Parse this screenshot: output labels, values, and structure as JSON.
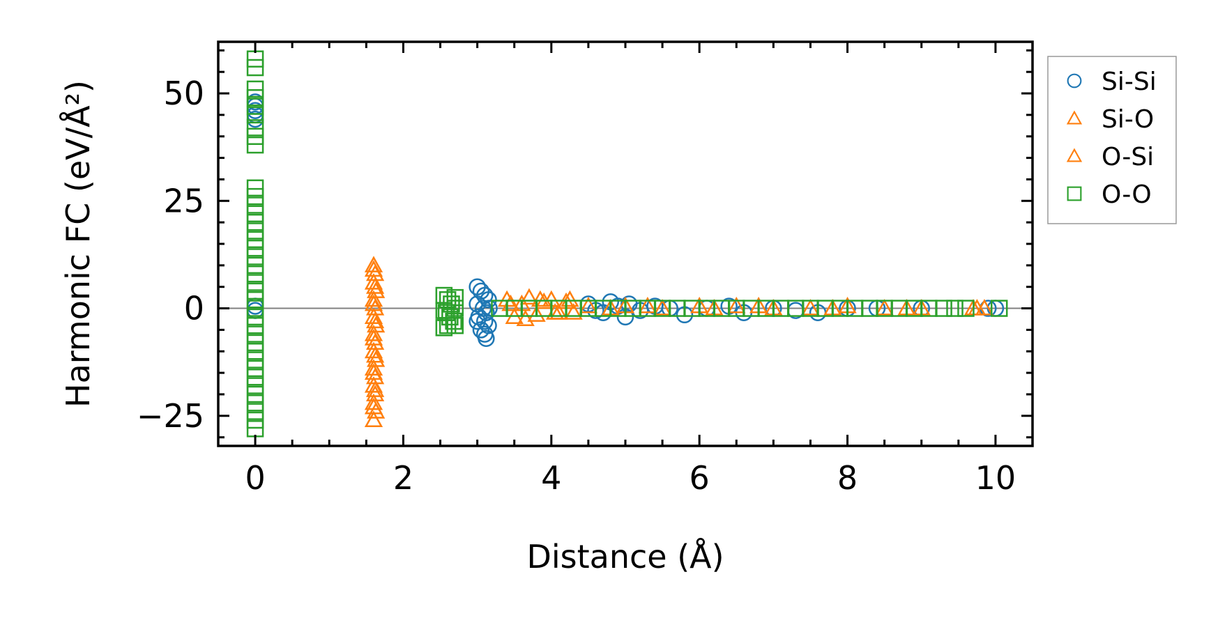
{
  "chart_data": {
    "type": "scatter",
    "title": "",
    "xlabel": "Distance (Å)",
    "ylabel": "Harmonic FC (eV/Å²)",
    "xlim": [
      -0.5,
      10.5
    ],
    "ylim": [
      -32,
      62
    ],
    "xticks": [
      0,
      2,
      4,
      6,
      8,
      10
    ],
    "xtick_labels": [
      "0",
      "2",
      "4",
      "6",
      "8",
      "10"
    ],
    "yticks": [
      -25,
      0,
      25,
      50
    ],
    "ytick_labels": [
      "−25",
      "0",
      "25",
      "50"
    ],
    "grid": false,
    "zero_line": {
      "y": 0,
      "color": "#808080"
    },
    "legend": {
      "placement": "outside-right-top"
    },
    "series": [
      {
        "name": "Si-Si",
        "marker": "circle",
        "color": "#1f77b4",
        "points": [
          [
            0,
            48
          ],
          [
            0,
            47
          ],
          [
            0,
            46
          ],
          [
            0,
            45
          ],
          [
            0,
            44
          ],
          [
            0,
            0.5
          ],
          [
            0,
            -0.5
          ],
          [
            3.0,
            5
          ],
          [
            3.05,
            4
          ],
          [
            3.1,
            3
          ],
          [
            3.15,
            2
          ],
          [
            3.0,
            1
          ],
          [
            3.08,
            0
          ],
          [
            3.12,
            -1
          ],
          [
            3.02,
            -2
          ],
          [
            3.1,
            -3
          ],
          [
            3.15,
            -4
          ],
          [
            3.05,
            -5
          ],
          [
            3.1,
            -6
          ],
          [
            3.12,
            -7
          ],
          [
            3.0,
            -3
          ],
          [
            3.16,
            0
          ],
          [
            4.5,
            1
          ],
          [
            4.6,
            -0.5
          ],
          [
            4.7,
            -1
          ],
          [
            4.8,
            1.5
          ],
          [
            4.9,
            0.5
          ],
          [
            5.0,
            -2
          ],
          [
            5.05,
            1
          ],
          [
            5.2,
            -0.5
          ],
          [
            5.4,
            0.5
          ],
          [
            5.6,
            0
          ],
          [
            5.8,
            -1.5
          ],
          [
            6.1,
            0
          ],
          [
            6.4,
            0.5
          ],
          [
            6.6,
            -1
          ],
          [
            7.0,
            0
          ],
          [
            7.3,
            -0.5
          ],
          [
            7.6,
            -1
          ],
          [
            8.0,
            0
          ],
          [
            8.4,
            0
          ],
          [
            9.0,
            0
          ],
          [
            9.9,
            0
          ],
          [
            10.0,
            0
          ]
        ]
      },
      {
        "name": "Si-O",
        "marker": "triangle",
        "color": "#ff7f0e",
        "points": [
          [
            1.6,
            10
          ],
          [
            1.62,
            8
          ],
          [
            1.6,
            6
          ],
          [
            1.63,
            4
          ],
          [
            1.6,
            2
          ],
          [
            1.62,
            0
          ],
          [
            1.6,
            -2
          ],
          [
            1.63,
            -4
          ],
          [
            1.6,
            -6
          ],
          [
            1.62,
            -8
          ],
          [
            1.6,
            -10
          ],
          [
            1.63,
            -12
          ],
          [
            1.6,
            -14
          ],
          [
            1.62,
            -16
          ],
          [
            1.6,
            -18
          ],
          [
            1.62,
            -20
          ],
          [
            1.6,
            -22
          ],
          [
            1.63,
            -24
          ],
          [
            1.6,
            -26
          ],
          [
            3.4,
            2
          ],
          [
            3.5,
            -2
          ],
          [
            3.6,
            1
          ],
          [
            3.7,
            2.5
          ],
          [
            3.8,
            -1.5
          ],
          [
            3.9,
            1.5
          ],
          [
            4.0,
            2
          ],
          [
            4.1,
            -1
          ],
          [
            4.2,
            1.5
          ],
          [
            4.3,
            -1
          ],
          [
            4.5,
            0.5
          ],
          [
            5.0,
            0.5
          ],
          [
            5.5,
            0
          ],
          [
            6.0,
            0.5
          ],
          [
            6.5,
            0.5
          ],
          [
            7.0,
            0
          ],
          [
            7.5,
            0
          ],
          [
            8.0,
            0.5
          ],
          [
            8.5,
            0
          ],
          [
            9.0,
            0
          ],
          [
            9.7,
            0
          ],
          [
            9.85,
            0
          ]
        ]
      },
      {
        "name": "O-Si",
        "marker": "triangle",
        "color": "#ff7f0e",
        "points": [
          [
            1.6,
            9
          ],
          [
            1.62,
            5
          ],
          [
            1.6,
            1
          ],
          [
            1.62,
            -3
          ],
          [
            1.6,
            -7
          ],
          [
            1.62,
            -11
          ],
          [
            1.6,
            -15
          ],
          [
            1.62,
            -19
          ],
          [
            1.6,
            -23
          ],
          [
            3.45,
            1
          ],
          [
            3.65,
            -2.5
          ],
          [
            3.85,
            2
          ],
          [
            4.05,
            -1
          ],
          [
            4.25,
            2
          ],
          [
            4.8,
            0
          ],
          [
            5.3,
            0.5
          ],
          [
            6.2,
            0
          ],
          [
            6.8,
            0.5
          ],
          [
            7.8,
            0
          ],
          [
            8.8,
            0
          ],
          [
            9.75,
            0
          ]
        ]
      },
      {
        "name": "O-O",
        "marker": "square",
        "color": "#2ca02c",
        "points": [
          [
            0,
            58
          ],
          [
            0,
            56
          ],
          [
            0,
            51
          ],
          [
            0,
            49
          ],
          [
            0,
            47
          ],
          [
            0,
            45
          ],
          [
            0,
            42
          ],
          [
            0,
            40
          ],
          [
            0,
            38
          ],
          [
            0,
            28
          ],
          [
            0,
            26
          ],
          [
            0,
            24
          ],
          [
            0,
            22
          ],
          [
            0,
            20
          ],
          [
            0,
            18
          ],
          [
            0,
            16
          ],
          [
            0,
            14
          ],
          [
            0,
            12
          ],
          [
            0,
            10
          ],
          [
            0,
            8
          ],
          [
            0,
            6
          ],
          [
            0,
            4
          ],
          [
            0,
            2
          ],
          [
            0,
            0
          ],
          [
            0,
            -2
          ],
          [
            0,
            -4
          ],
          [
            0,
            -6
          ],
          [
            0,
            -8
          ],
          [
            0,
            -10
          ],
          [
            0,
            -12
          ],
          [
            0,
            -14
          ],
          [
            0,
            -16
          ],
          [
            0,
            -18
          ],
          [
            0,
            -20
          ],
          [
            0,
            -22
          ],
          [
            0,
            -24
          ],
          [
            0,
            -26
          ],
          [
            0,
            -28
          ],
          [
            2.55,
            3
          ],
          [
            2.6,
            2
          ],
          [
            2.65,
            1
          ],
          [
            2.7,
            0
          ],
          [
            2.58,
            -1
          ],
          [
            2.63,
            -2
          ],
          [
            2.68,
            -3
          ],
          [
            2.6,
            -4
          ],
          [
            2.55,
            -4.5
          ],
          [
            2.7,
            -4
          ],
          [
            2.7,
            2.5
          ],
          [
            2.55,
            -0.5
          ],
          [
            3.3,
            0
          ],
          [
            3.5,
            0
          ],
          [
            3.7,
            0
          ],
          [
            3.9,
            0
          ],
          [
            4.1,
            0
          ],
          [
            4.3,
            0
          ],
          [
            4.5,
            0
          ],
          [
            4.7,
            0
          ],
          [
            4.9,
            0
          ],
          [
            5.1,
            0
          ],
          [
            5.3,
            0
          ],
          [
            5.5,
            0
          ],
          [
            5.7,
            0
          ],
          [
            5.9,
            0
          ],
          [
            6.1,
            0
          ],
          [
            6.3,
            0
          ],
          [
            6.5,
            0
          ],
          [
            6.7,
            0
          ],
          [
            6.9,
            0
          ],
          [
            7.1,
            0
          ],
          [
            7.3,
            0
          ],
          [
            7.5,
            0
          ],
          [
            7.7,
            0
          ],
          [
            7.9,
            0
          ],
          [
            8.1,
            0
          ],
          [
            8.3,
            0
          ],
          [
            8.5,
            0
          ],
          [
            8.7,
            0
          ],
          [
            8.9,
            0
          ],
          [
            9.1,
            0
          ],
          [
            9.3,
            0
          ],
          [
            9.45,
            0
          ],
          [
            9.6,
            0
          ],
          [
            10.05,
            0
          ]
        ]
      }
    ]
  }
}
